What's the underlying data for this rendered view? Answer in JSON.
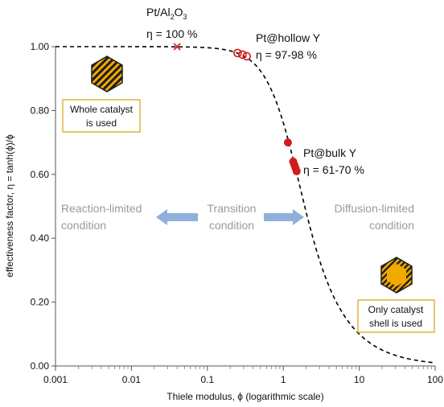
{
  "chart_data": {
    "type": "scatter",
    "xlabel": "Thiele modulus, ϕ (logarithmic scale)",
    "ylabel": "effectiveness factor, η = tanh(ϕ)/ϕ",
    "xscale": "log",
    "xlim": [
      0.001,
      100
    ],
    "ylim": [
      0.0,
      1.0
    ],
    "x_ticks": [
      {
        "value": 0.001,
        "label": "0.001"
      },
      {
        "value": 0.01,
        "label": "0.01"
      },
      {
        "value": 0.1,
        "label": "0.1"
      },
      {
        "value": 1,
        "label": "1"
      },
      {
        "value": 10,
        "label": "10"
      },
      {
        "value": 100,
        "label": "100"
      }
    ],
    "y_ticks": [
      {
        "value": 0.0,
        "label": "0.00"
      },
      {
        "value": 0.2,
        "label": "0.20"
      },
      {
        "value": 0.4,
        "label": "0.40"
      },
      {
        "value": 0.6,
        "label": "0.60"
      },
      {
        "value": 0.8,
        "label": "0.80"
      },
      {
        "value": 1.0,
        "label": "1.00"
      }
    ],
    "curve": {
      "function": "tanh(x)/x",
      "style": "dashed",
      "color": "#000000"
    },
    "points": {
      "pt_al2o3": [
        {
          "x": 0.04,
          "y": 1.0
        }
      ],
      "pt_hollow": [
        {
          "x": 0.25,
          "y": 0.98
        },
        {
          "x": 0.29,
          "y": 0.975
        },
        {
          "x": 0.33,
          "y": 0.97
        }
      ],
      "pt_bulk": [
        {
          "x": 1.15,
          "y": 0.7
        },
        {
          "x": 1.35,
          "y": 0.64
        },
        {
          "x": 1.4,
          "y": 0.63
        },
        {
          "x": 1.45,
          "y": 0.62
        },
        {
          "x": 1.5,
          "y": 0.61
        }
      ]
    },
    "annotations": {
      "pt_al2o3_name_main": "Pt/Al",
      "pt_al2o3_sub1": "2",
      "pt_al2o3_mid": "O",
      "pt_al2o3_sub2": "3",
      "pt_al2o3_eta": "η = 100 %",
      "hollow_name": "Pt@hollow Y",
      "hollow_eta": "η = 97-98 %",
      "bulk_name": "Pt@bulk Y",
      "bulk_eta": "η = 61-70 %"
    },
    "conditions": {
      "reaction_line1": "Reaction-limited",
      "reaction_line2": "condition",
      "transition_line1": "Transition",
      "transition_line2": "condition",
      "diffusion_line1": "Diffusion-limited",
      "diffusion_line2": "condition"
    },
    "boxes": {
      "whole_line1": "Whole catalyst",
      "whole_line2": "is used",
      "shell_line1": "Only catalyst",
      "shell_line2": "shell is used"
    },
    "colors": {
      "curve": "#000000",
      "marker": "#d21c1c",
      "arrow": "#8fb0d8",
      "box_border": "#e0b43a",
      "hex_fill": "#f2a900",
      "hex_dark": "#1e1e1e",
      "condition_text": "#9a9a9a"
    }
  }
}
